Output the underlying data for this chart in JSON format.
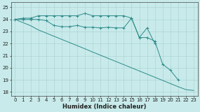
{
  "x": [
    0,
    1,
    2,
    3,
    4,
    5,
    6,
    7,
    8,
    9,
    10,
    11,
    12,
    13,
    14,
    15,
    16,
    17,
    18,
    19,
    20,
    21,
    22,
    23
  ],
  "line1_y": [
    24.0,
    24.1,
    24.1,
    24.3,
    24.3,
    24.3,
    24.3,
    24.3,
    24.3,
    24.5,
    24.3,
    24.3,
    24.3,
    24.3,
    24.3,
    24.1,
    22.5,
    23.3,
    22.0,
    null,
    null,
    null,
    null,
    null
  ],
  "line2_y": [
    24.0,
    24.0,
    24.0,
    24.0,
    23.9,
    23.5,
    23.4,
    23.4,
    23.5,
    23.35,
    23.35,
    23.3,
    23.35,
    23.3,
    23.3,
    24.1,
    22.5,
    22.5,
    22.2,
    20.3,
    19.8,
    19.0,
    null,
    null
  ],
  "line3_y": [
    24.0,
    23.74,
    23.48,
    23.13,
    22.87,
    22.61,
    22.35,
    22.09,
    21.83,
    21.57,
    21.3,
    21.04,
    20.78,
    20.52,
    20.26,
    20.0,
    19.74,
    19.48,
    19.22,
    18.96,
    18.7,
    18.44,
    18.2,
    18.13
  ],
  "color": "#2e8b8b",
  "bg_color": "#c8eaea",
  "grid_color": "#a8d0d0",
  "xlabel": "Humidex (Indice chaleur)",
  "ylim": [
    17.7,
    25.4
  ],
  "xlim": [
    -0.5,
    23.5
  ],
  "yticks": [
    18,
    19,
    20,
    21,
    22,
    23,
    24,
    25
  ],
  "xticks": [
    0,
    1,
    2,
    3,
    4,
    5,
    6,
    7,
    8,
    9,
    10,
    11,
    12,
    13,
    14,
    15,
    16,
    17,
    18,
    19,
    20,
    21,
    22,
    23
  ],
  "tick_fontsize": 5.0,
  "xlabel_fontsize": 6.0
}
